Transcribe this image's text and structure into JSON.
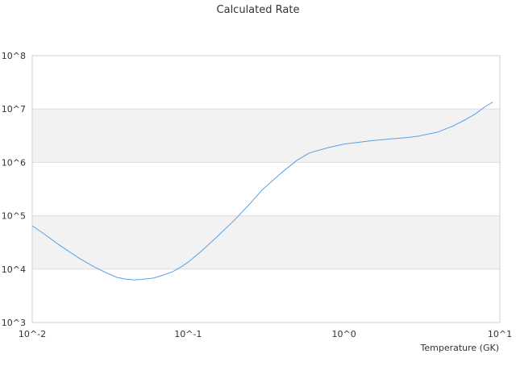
{
  "chart_data": {
    "type": "line",
    "title": "Calculated Rate",
    "xlabel": "Temperature (GK)",
    "ylabel": "",
    "x_scale": "log",
    "y_scale": "log",
    "xlim": [
      0.01,
      10
    ],
    "ylim": [
      1000,
      100000000
    ],
    "x_ticks": [
      "10^-2",
      "10^-1",
      "10^0",
      "10^1"
    ],
    "y_ticks": [
      "10^3",
      "10^4",
      "10^5",
      "10^6",
      "10^7",
      "10^8"
    ],
    "grid": "alternating horizontal bands",
    "legend": "none",
    "series": [
      {
        "color": "#5aa0e8",
        "x": [
          0.01,
          0.012,
          0.015,
          0.02,
          0.025,
          0.03,
          0.035,
          0.04,
          0.045,
          0.05,
          0.06,
          0.07,
          0.08,
          0.09,
          0.1,
          0.12,
          0.15,
          0.2,
          0.25,
          0.3,
          0.4,
          0.5,
          0.6,
          0.8,
          1.0,
          1.5,
          2.0,
          2.5,
          3.0,
          4.0,
          5.0,
          6.0,
          7.0,
          8.0,
          9.0
        ],
        "y": [
          65000,
          45000,
          28000,
          16000,
          11000,
          8500,
          7000,
          6500,
          6300,
          6400,
          6800,
          7800,
          9000,
          11000,
          13500,
          21000,
          38000,
          85000,
          170000,
          310000,
          650000,
          1100000,
          1500000,
          1900000,
          2200000,
          2550000,
          2750000,
          2900000,
          3100000,
          3700000,
          4800000,
          6300000,
          8200000,
          11000000,
          13500000
        ]
      }
    ]
  }
}
